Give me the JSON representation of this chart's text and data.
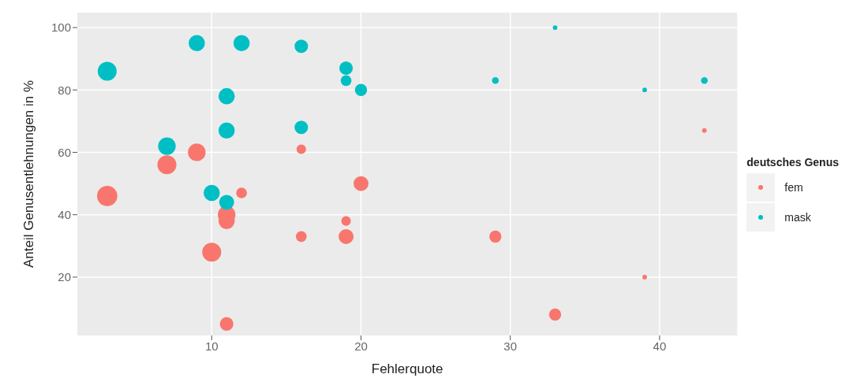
{
  "chart_data": {
    "type": "bubble",
    "xlabel": "Fehlerquote",
    "ylabel": "Anteil Genusentlehnungen in %",
    "legend_title": "deutsches Genus",
    "legend": "right",
    "grid": true,
    "marker": "circle",
    "xlim": [
      1,
      45.2
    ],
    "xticks": [
      10,
      20,
      30,
      40
    ],
    "ylim": [
      1.3,
      104.8
    ],
    "yticks": [
      20,
      40,
      60,
      80,
      100
    ],
    "series": [
      {
        "name": "fem",
        "color": "#f8766d",
        "x": [
          3,
          7,
          9,
          10,
          11,
          11,
          11,
          12,
          16,
          16,
          19,
          19,
          20,
          29,
          33,
          39,
          43
        ],
        "values": [
          46,
          56,
          60,
          28,
          40,
          38,
          5,
          47,
          61,
          33,
          38,
          33,
          50,
          33,
          8,
          20,
          67
        ],
        "sizes": [
          1,
          0.87,
          0.75,
          0.87,
          0.75,
          0.64,
          0.44,
          0.28,
          0.22,
          0.28,
          0.22,
          0.54,
          0.54,
          0.36,
          0.36,
          0.05,
          0.05
        ]
      },
      {
        "name": "mask",
        "color": "#00bfc4",
        "x": [
          3,
          7,
          9,
          10,
          11,
          11,
          11,
          12,
          16,
          16,
          19,
          19,
          20,
          29,
          33,
          39,
          43
        ],
        "values": [
          86,
          62,
          95,
          47,
          78,
          67,
          44,
          95,
          94,
          68,
          87,
          83,
          80,
          83,
          100,
          80,
          83
        ],
        "sizes": [
          0.87,
          0.75,
          0.64,
          0.64,
          0.64,
          0.64,
          0.54,
          0.64,
          0.44,
          0.44,
          0.44,
          0.28,
          0.36,
          0.11,
          0.05,
          0.05,
          0.11
        ]
      }
    ]
  }
}
